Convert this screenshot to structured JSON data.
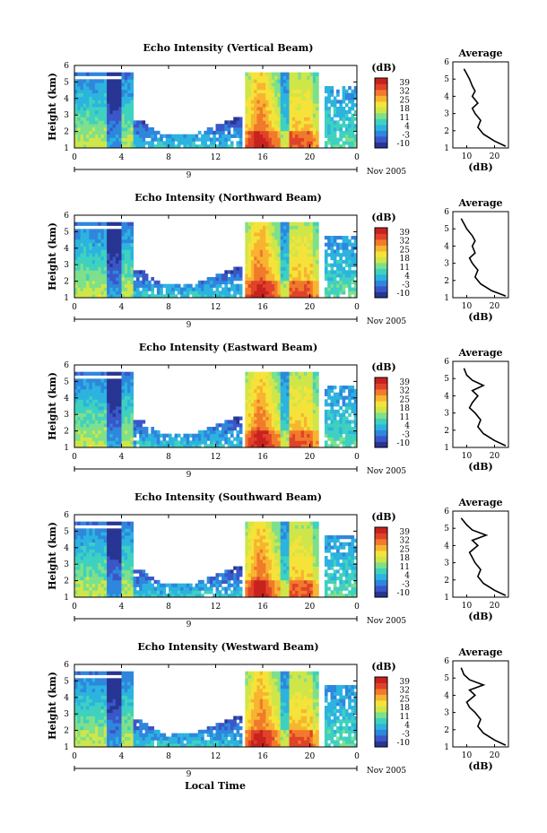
{
  "figure": {
    "xlabel": "Local Time",
    "date_label": "Nov 2005",
    "day_label": "9"
  },
  "chart_data": [
    {
      "type": "heatmap",
      "title": "Echo Intensity (Vertical Beam)",
      "xlabel": "Local Time",
      "ylabel": "Height (km)",
      "x_ticks": [
        "0",
        "4",
        "8",
        "12",
        "16",
        "20",
        "0"
      ],
      "y_ticks": [
        "1",
        "2",
        "3",
        "4",
        "5",
        "6"
      ],
      "colorbar_label": "(dB)",
      "colorbar_ticks": [
        "-10",
        "-3",
        "4",
        "11",
        "18",
        "25",
        "32",
        "39"
      ],
      "xlim": [
        0,
        24
      ],
      "ylim": [
        1,
        6
      ]
    },
    {
      "type": "line",
      "title": "Average",
      "xlabel": "(dB)",
      "xlim": [
        5,
        25
      ],
      "ylim": [
        1,
        6
      ],
      "x_ticks": [
        "10",
        "20"
      ],
      "y_ticks": [
        "1",
        "2",
        "3",
        "4",
        "5",
        "6"
      ],
      "x": [
        9,
        10,
        11,
        12,
        13,
        12,
        14,
        12,
        13,
        15,
        14,
        16,
        20,
        24
      ],
      "y": [
        5.6,
        5.3,
        5.0,
        4.6,
        4.3,
        4.0,
        3.6,
        3.3,
        3.0,
        2.6,
        2.2,
        1.8,
        1.4,
        1.1
      ]
    },
    {
      "type": "heatmap",
      "title": "Echo Intensity (Northward Beam)",
      "xlabel": "Local Time",
      "ylabel": "Height (km)",
      "x_ticks": [
        "0",
        "4",
        "8",
        "12",
        "16",
        "20",
        "0"
      ],
      "y_ticks": [
        "1",
        "2",
        "3",
        "4",
        "5",
        "6"
      ],
      "colorbar_label": "(dB)",
      "colorbar_ticks": [
        "-10",
        "-3",
        "4",
        "11",
        "18",
        "25",
        "32",
        "39"
      ],
      "xlim": [
        0,
        24
      ],
      "ylim": [
        1,
        6
      ]
    },
    {
      "type": "line",
      "title": "Average",
      "xlabel": "(dB)",
      "xlim": [
        5,
        25
      ],
      "ylim": [
        1,
        6
      ],
      "x_ticks": [
        "10",
        "20"
      ],
      "y_ticks": [
        "1",
        "2",
        "3",
        "4",
        "5",
        "6"
      ],
      "x": [
        8,
        9,
        10,
        12,
        13,
        12,
        13,
        11,
        12,
        14,
        13,
        15,
        19,
        24
      ],
      "y": [
        5.6,
        5.3,
        5.0,
        4.6,
        4.3,
        4.0,
        3.6,
        3.3,
        3.0,
        2.6,
        2.2,
        1.8,
        1.4,
        1.1
      ]
    },
    {
      "type": "heatmap",
      "title": "Echo Intensity (Eastward Beam)",
      "xlabel": "Local Time",
      "ylabel": "Height (km)",
      "x_ticks": [
        "0",
        "4",
        "8",
        "12",
        "16",
        "20",
        "0"
      ],
      "y_ticks": [
        "1",
        "2",
        "3",
        "4",
        "5",
        "6"
      ],
      "colorbar_label": "(dB)",
      "colorbar_ticks": [
        "-10",
        "-3",
        "4",
        "11",
        "18",
        "25",
        "32",
        "39"
      ],
      "xlim": [
        0,
        24
      ],
      "ylim": [
        1,
        6
      ]
    },
    {
      "type": "line",
      "title": "Average",
      "xlabel": "(dB)",
      "xlim": [
        5,
        25
      ],
      "ylim": [
        1,
        6
      ],
      "x_ticks": [
        "10",
        "20"
      ],
      "y_ticks": [
        "1",
        "2",
        "3",
        "4",
        "5",
        "6"
      ],
      "x": [
        9,
        10,
        12,
        16,
        12,
        14,
        12,
        11,
        13,
        15,
        14,
        16,
        20,
        24
      ],
      "y": [
        5.6,
        5.2,
        4.9,
        4.6,
        4.3,
        4.0,
        3.6,
        3.3,
        3.0,
        2.6,
        2.2,
        1.8,
        1.4,
        1.1
      ]
    },
    {
      "type": "heatmap",
      "title": "Echo Intensity (Southward Beam)",
      "xlabel": "Local Time",
      "ylabel": "Height (km)",
      "x_ticks": [
        "0",
        "4",
        "8",
        "12",
        "16",
        "20",
        "0"
      ],
      "y_ticks": [
        "1",
        "2",
        "3",
        "4",
        "5",
        "6"
      ],
      "colorbar_label": "(dB)",
      "colorbar_ticks": [
        "-10",
        "-3",
        "4",
        "11",
        "18",
        "25",
        "32",
        "39"
      ],
      "xlim": [
        0,
        24
      ],
      "ylim": [
        1,
        6
      ]
    },
    {
      "type": "line",
      "title": "Average",
      "xlabel": "(dB)",
      "xlim": [
        5,
        25
      ],
      "ylim": [
        1,
        6
      ],
      "x_ticks": [
        "10",
        "20"
      ],
      "y_ticks": [
        "1",
        "2",
        "3",
        "4",
        "5",
        "6"
      ],
      "x": [
        8,
        10,
        12,
        17,
        12,
        14,
        11,
        12,
        13,
        15,
        14,
        16,
        20,
        24
      ],
      "y": [
        5.6,
        5.2,
        4.9,
        4.6,
        4.3,
        4.0,
        3.6,
        3.3,
        3.0,
        2.6,
        2.2,
        1.8,
        1.4,
        1.1
      ]
    },
    {
      "type": "heatmap",
      "title": "Echo Intensity (Westward Beam)",
      "xlabel": "Local Time",
      "ylabel": "Height (km)",
      "x_ticks": [
        "0",
        "4",
        "8",
        "12",
        "16",
        "20",
        "0"
      ],
      "y_ticks": [
        "1",
        "2",
        "3",
        "4",
        "5",
        "6"
      ],
      "colorbar_label": "(dB)",
      "colorbar_ticks": [
        "-10",
        "-3",
        "4",
        "11",
        "18",
        "25",
        "32",
        "39"
      ],
      "xlim": [
        0,
        24
      ],
      "ylim": [
        1,
        6
      ]
    },
    {
      "type": "line",
      "title": "Average",
      "xlabel": "(dB)",
      "xlim": [
        5,
        25
      ],
      "ylim": [
        1,
        6
      ],
      "x_ticks": [
        "10",
        "20"
      ],
      "y_ticks": [
        "1",
        "2",
        "3",
        "4",
        "5",
        "6"
      ],
      "x": [
        8,
        9,
        11,
        16,
        11,
        13,
        10,
        11,
        13,
        15,
        14,
        16,
        20,
        24
      ],
      "y": [
        5.6,
        5.2,
        4.9,
        4.6,
        4.3,
        4.0,
        3.6,
        3.3,
        3.0,
        2.6,
        2.2,
        1.8,
        1.4,
        1.1
      ]
    }
  ],
  "colors": {
    "colormap": [
      "#283593",
      "#3a56c8",
      "#2f86dd",
      "#2cb3df",
      "#3fd1c0",
      "#7ee08a",
      "#cfe64a",
      "#f5e33a",
      "#f8b431",
      "#f17a2b",
      "#e0422a",
      "#c8221e"
    ]
  }
}
